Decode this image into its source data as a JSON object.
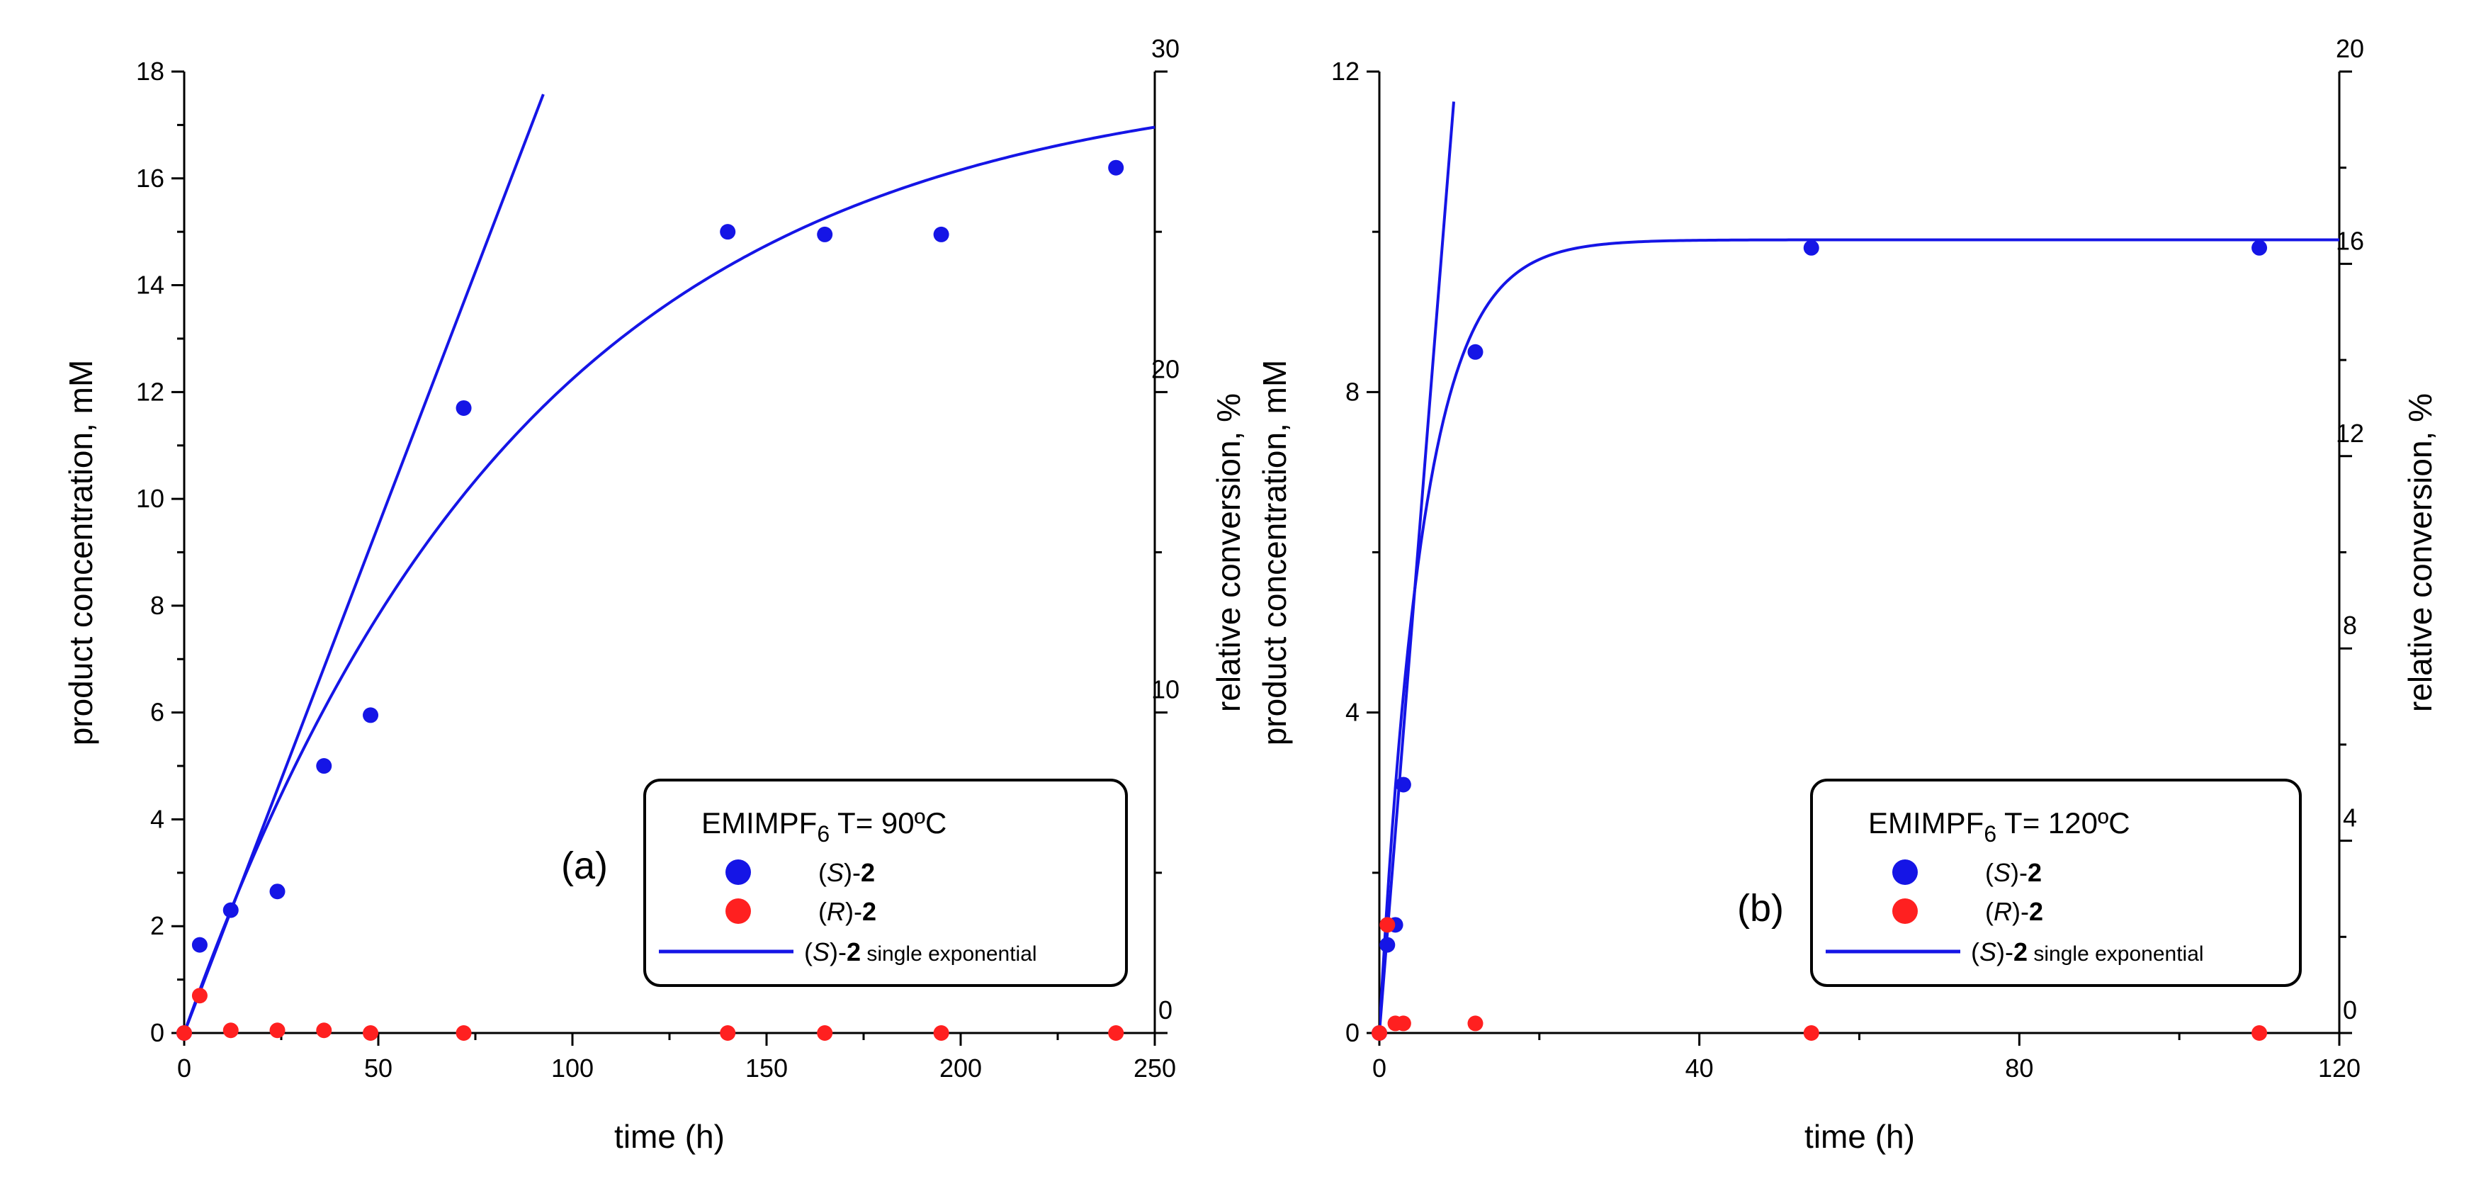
{
  "chart_data": [
    {
      "type": "scatter",
      "panel_label": "(a)",
      "xlabel": "time (h)",
      "ylabel": "product concentration, mM",
      "y2label": "relative conversion, %",
      "xlim": [
        0,
        250
      ],
      "ylim": [
        0,
        18
      ],
      "y2lim": [
        0,
        30
      ],
      "xticks": [
        "0",
        "50",
        "100",
        "150",
        "200",
        "250"
      ],
      "yticks": [
        "0",
        "2",
        "4",
        "6",
        "8",
        "10",
        "12",
        "14",
        "16",
        "18"
      ],
      "y2ticks": [
        "0",
        "10",
        "20",
        "30"
      ],
      "legend": {
        "title_main": "EMIMPF",
        "title_sub": "6",
        "title_rest": " T= 90ºC",
        "entries": [
          {
            "italic": "S",
            "bold": "2",
            "suffix": ""
          },
          {
            "italic": "R",
            "bold": "2",
            "suffix": ""
          },
          {
            "italic": "S",
            "bold": "2",
            "suffix": " single exponential"
          }
        ]
      },
      "series": [
        {
          "name": "(S)-2",
          "color": "#1515e6",
          "x": [
            0,
            4,
            12,
            24,
            36,
            48,
            72,
            140,
            165,
            195,
            240
          ],
          "y": [
            0,
            1.65,
            2.3,
            2.65,
            5.0,
            5.95,
            11.7,
            15.0,
            14.95,
            14.95,
            16.2
          ]
        },
        {
          "name": "(R)-2",
          "color": "#ff2020",
          "x": [
            0,
            4,
            12,
            24,
            36,
            48,
            72,
            140,
            165,
            195,
            240
          ],
          "y": [
            0,
            0.7,
            0.05,
            0.05,
            0.05,
            0,
            0,
            0,
            0,
            0,
            0
          ]
        }
      ],
      "fit": {
        "name": "(S)-2 single exponential",
        "color": "#1515e6",
        "A": 18.0,
        "k": 0.0114,
        "x_end": 250
      },
      "initial_slope": {
        "slope": 0.19,
        "x_end": 92.5
      }
    },
    {
      "type": "scatter",
      "panel_label": "(b)",
      "xlabel": "time (h)",
      "ylabel": "product concentration, mM",
      "y2label": "relative conversion, %",
      "xlim": [
        0,
        120
      ],
      "ylim": [
        0,
        12
      ],
      "y2lim": [
        0,
        20
      ],
      "xticks": [
        "0",
        "40",
        "80",
        "120"
      ],
      "yticks": [
        "0",
        "4",
        "8",
        "12"
      ],
      "y2ticks": [
        "0",
        "4",
        "8",
        "12",
        "16",
        "20"
      ],
      "legend": {
        "title_main": "EMIMPF",
        "title_sub": "6",
        "title_rest": " T= 120ºC",
        "entries": [
          {
            "italic": "S",
            "bold": "2",
            "suffix": ""
          },
          {
            "italic": "R",
            "bold": "2",
            "suffix": ""
          },
          {
            "italic": "S",
            "bold": "2",
            "suffix": " single exponential"
          }
        ]
      },
      "series": [
        {
          "name": "(S)-2",
          "color": "#1515e6",
          "x": [
            0,
            1,
            2,
            3,
            12,
            54,
            110
          ],
          "y": [
            0,
            1.1,
            1.35,
            3.1,
            8.5,
            9.8,
            9.8
          ]
        },
        {
          "name": "(R)-2",
          "color": "#ff2020",
          "x": [
            0,
            1,
            2,
            3,
            12,
            54,
            110
          ],
          "y": [
            0,
            1.35,
            0.12,
            0.12,
            0.12,
            0,
            0
          ]
        }
      ],
      "fit": {
        "name": "(S)-2 single exponential",
        "color": "#1515e6",
        "A": 9.9,
        "k": 0.185,
        "x_end": 120
      },
      "initial_slope": {
        "slope": 1.25,
        "x_end": 9.3
      }
    }
  ]
}
